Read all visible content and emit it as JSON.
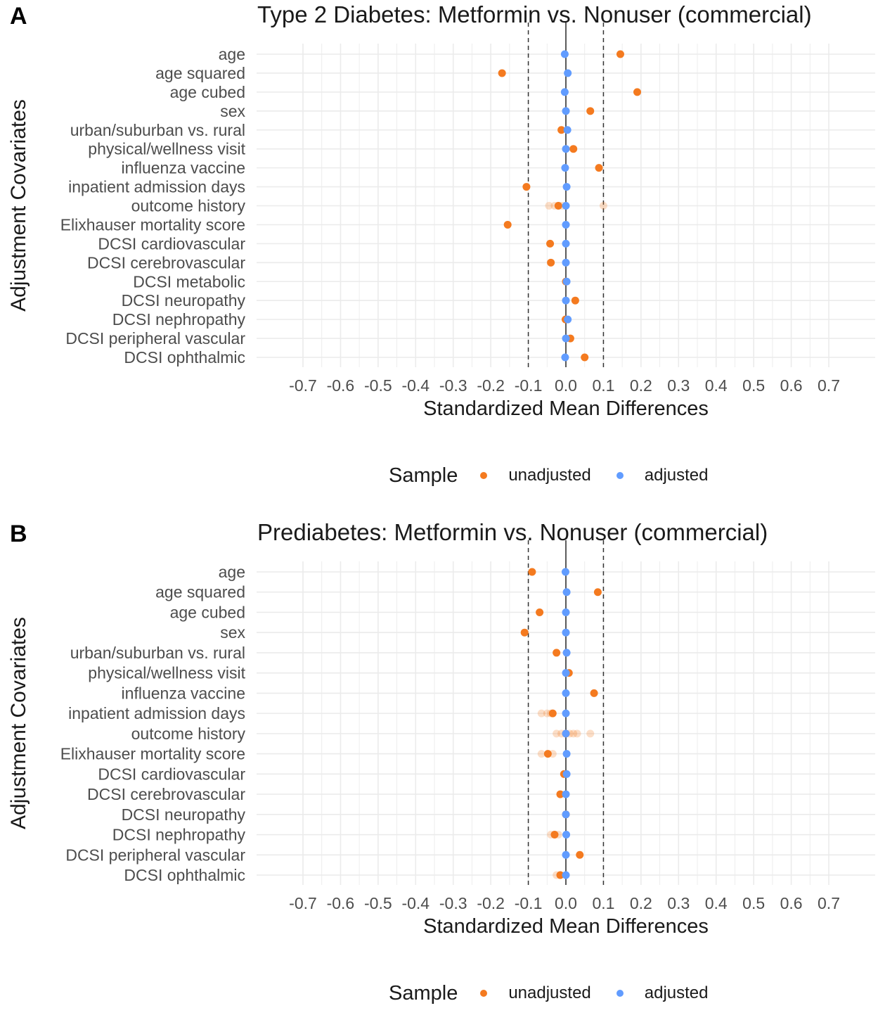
{
  "panels": [
    {
      "letter": "A",
      "title": "Type 2 Diabetes: Metformin vs. Nonuser (commercial)",
      "ylabel": "Adjustment Covariates",
      "xlabel": "Standardized Mean Differences",
      "legend": {
        "title": "Sample",
        "unadjusted": "unadjusted",
        "adjusted": "adjusted"
      }
    },
    {
      "letter": "B",
      "title": "Prediabetes: Metformin vs. Nonuser (commercial)",
      "ylabel": "Adjustment Covariates",
      "xlabel": "Standardized Mean Differences",
      "legend": {
        "title": "Sample",
        "unadjusted": "unadjusted",
        "adjusted": "adjusted"
      }
    }
  ],
  "colors": {
    "unadjusted": "#f47a1f",
    "adjusted": "#619cff",
    "grid": "#ebebeb",
    "zero_line": "#333333",
    "ref_line": "#333333"
  },
  "chart_data": [
    {
      "type": "scatter",
      "title": "Type 2 Diabetes: Metformin vs. Nonuser (commercial)",
      "xlabel": "Standardized Mean Differences",
      "ylabel": "Adjustment Covariates",
      "xlim": [
        -0.7,
        0.7
      ],
      "xticks": [
        "-0.7",
        "-0.6",
        "-0.5",
        "-0.4",
        "-0.3",
        "-0.2",
        "-0.1",
        "0.0",
        "0.1",
        "0.2",
        "0.3",
        "0.4",
        "0.5",
        "0.6",
        "0.7"
      ],
      "reference_lines": [
        -0.1,
        0.1
      ],
      "grid": true,
      "legend_position": "bottom",
      "categories": [
        "age",
        "age squared",
        "age cubed",
        "sex",
        "urban/suburban vs. rural",
        "physical/wellness visit",
        "influenza vaccine",
        "inpatient admission days",
        "outcome history",
        "Elixhauser mortality score",
        "DCSI cardiovascular",
        "DCSI cerebrovascular",
        "DCSI metabolic",
        "DCSI neuropathy",
        "DCSI nephropathy",
        "DCSI peripheral vascular",
        "DCSI ophthalmic"
      ],
      "series": [
        {
          "name": "unadjusted",
          "values": [
            0.145,
            -0.17,
            0.19,
            0.065,
            -0.012,
            0.02,
            0.088,
            -0.105,
            -0.02,
            -0.155,
            -0.042,
            -0.04,
            0.0,
            0.025,
            -0.001,
            0.012,
            0.05
          ]
        },
        {
          "name": "adjusted",
          "values": [
            -0.003,
            0.005,
            -0.003,
            0.0,
            0.004,
            0.0,
            -0.002,
            0.002,
            0.0,
            0.0,
            0.0,
            0.0,
            0.002,
            0.0,
            0.005,
            0.0,
            -0.002
          ]
        }
      ],
      "faint_unadjusted": [
        {
          "category": "outcome history",
          "values": [
            -0.045,
            -0.03,
            -0.01,
            0.1
          ]
        }
      ]
    },
    {
      "type": "scatter",
      "title": "Prediabetes: Metformin vs. Nonuser (commercial)",
      "xlabel": "Standardized Mean Differences",
      "ylabel": "Adjustment Covariates",
      "xlim": [
        -0.7,
        0.7
      ],
      "xticks": [
        "-0.7",
        "-0.6",
        "-0.5",
        "-0.4",
        "-0.3",
        "-0.2",
        "-0.1",
        "0.0",
        "0.1",
        "0.2",
        "0.3",
        "0.4",
        "0.5",
        "0.6",
        "0.7"
      ],
      "reference_lines": [
        -0.1,
        0.1
      ],
      "grid": true,
      "legend_position": "bottom",
      "categories": [
        "age",
        "age squared",
        "age cubed",
        "sex",
        "urban/suburban vs. rural",
        "physical/wellness visit",
        "influenza vaccine",
        "inpatient admission days",
        "outcome history",
        "Elixhauser mortality score",
        "DCSI cardiovascular",
        "DCSI cerebrovascular",
        "DCSI neuropathy",
        "DCSI nephropathy",
        "DCSI peripheral vascular",
        "DCSI ophthalmic"
      ],
      "series": [
        {
          "name": "unadjusted",
          "values": [
            -0.09,
            0.085,
            -0.07,
            -0.11,
            -0.025,
            0.008,
            0.075,
            -0.035,
            0.0,
            -0.048,
            -0.005,
            -0.015,
            0.0,
            -0.03,
            0.037,
            -0.015
          ]
        },
        {
          "name": "adjusted",
          "values": [
            -0.001,
            0.002,
            0.0,
            0.0,
            0.002,
            0.0,
            0.0,
            0.0,
            0.0,
            0.002,
            0.002,
            0.0,
            0.0,
            0.001,
            0.0,
            0.0
          ]
        }
      ],
      "faint_unadjusted": [
        {
          "category": "inpatient admission days",
          "values": [
            -0.065,
            -0.05,
            -0.04
          ]
        },
        {
          "category": "outcome history",
          "values": [
            -0.025,
            -0.012,
            0.01,
            0.02,
            0.03,
            0.065
          ]
        },
        {
          "category": "Elixhauser mortality score",
          "values": [
            -0.065,
            -0.035
          ]
        },
        {
          "category": "DCSI nephropathy",
          "values": [
            -0.04,
            -0.02
          ]
        },
        {
          "category": "DCSI ophthalmic",
          "values": [
            -0.025
          ]
        }
      ]
    }
  ]
}
